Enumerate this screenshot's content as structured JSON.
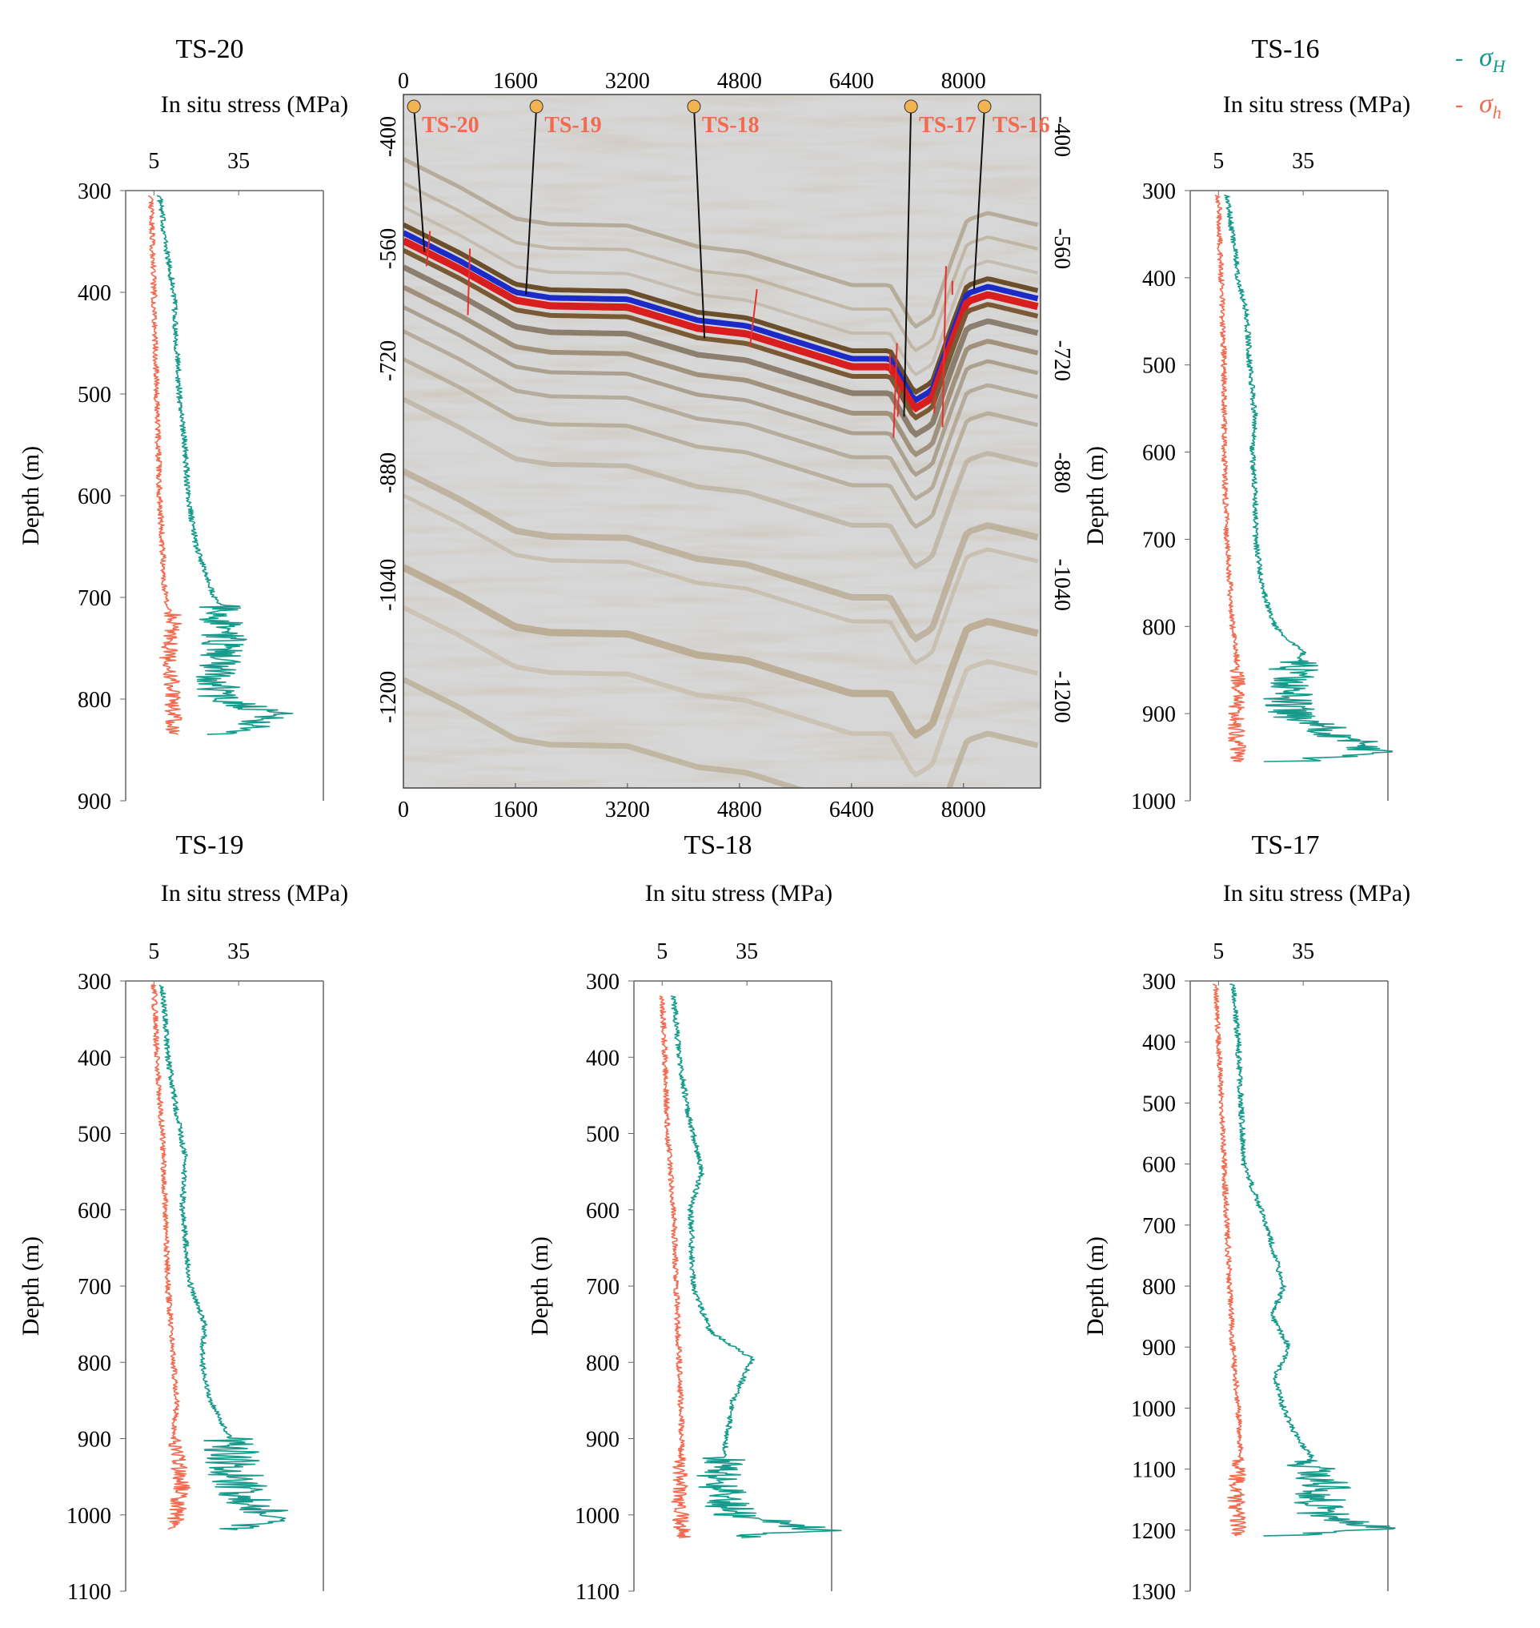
{
  "figure": {
    "legend": {
      "sigma_H": "σH",
      "sigma_h": "σh",
      "dash": "-"
    },
    "colors": {
      "sigma_H": "#159a8c",
      "sigma_h": "#f26a50",
      "section_label": "#f26a50",
      "fault": "#e8302c",
      "well_marker": "#f2b451"
    }
  },
  "chart_data": [
    {
      "type": "line",
      "id": "ts20",
      "title": "TS-20",
      "xlabel": "In situ stress (MPa)",
      "ylabel": "Depth (m)",
      "xticks": [
        5,
        35
      ],
      "xlim": [
        -5,
        65
      ],
      "ylim": [
        300,
        900
      ],
      "yticks": [
        300,
        400,
        500,
        600,
        700,
        800,
        900
      ],
      "series": [
        {
          "name": "σH",
          "depth": [
            305,
            350,
            400,
            450,
            500,
            550,
            600,
            650,
            690,
            710,
            740,
            780,
            800,
            815,
            835
          ],
          "values": [
            7,
            9,
            12,
            13,
            14,
            16,
            17,
            20,
            25,
            28,
            30,
            27,
            29,
            50,
            30
          ],
          "noisy_from": 705,
          "noise": 8
        },
        {
          "name": "σh",
          "depth": [
            305,
            400,
            500,
            600,
            700,
            720,
            760,
            800,
            835
          ],
          "values": [
            4,
            5,
            6,
            7,
            9,
            12,
            10,
            12,
            12
          ],
          "noisy_from": 715,
          "noise": 3
        }
      ]
    },
    {
      "type": "line",
      "id": "ts16",
      "title": "TS-16",
      "xlabel": "In situ stress (MPa)",
      "ylabel": "Depth (m)",
      "xticks": [
        5,
        35
      ],
      "xlim": [
        -5,
        65
      ],
      "ylim": [
        300,
        1000
      ],
      "yticks": [
        300,
        400,
        500,
        600,
        700,
        800,
        900,
        1000
      ],
      "series": [
        {
          "name": "σH",
          "depth": [
            305,
            350,
            400,
            440,
            500,
            560,
            600,
            650,
            700,
            760,
            800,
            830,
            860,
            900,
            945,
            955
          ],
          "values": [
            8,
            10,
            12,
            15,
            16,
            18,
            17,
            18,
            18,
            21,
            25,
            35,
            30,
            30,
            62,
            30
          ],
          "noisy_from": 840,
          "noise": 9
        },
        {
          "name": "σh",
          "depth": [
            305,
            400,
            500,
            600,
            700,
            800,
            850,
            900,
            955
          ],
          "values": [
            5,
            6,
            7,
            7,
            8,
            10,
            12,
            11,
            12
          ],
          "noisy_from": 850,
          "noise": 3
        }
      ]
    },
    {
      "type": "line",
      "id": "ts19",
      "title": "TS-19",
      "xlabel": "In situ stress (MPa)",
      "ylabel": "Depth (m)",
      "xticks": [
        5,
        35
      ],
      "xlim": [
        -5,
        65
      ],
      "ylim": [
        300,
        1100
      ],
      "yticks": [
        300,
        400,
        500,
        600,
        700,
        800,
        900,
        1000,
        1100
      ],
      "series": [
        {
          "name": "σH",
          "depth": [
            305,
            400,
            470,
            530,
            600,
            700,
            750,
            800,
            850,
            900,
            940,
            980,
            1005,
            1020
          ],
          "values": [
            8,
            10,
            13,
            16,
            15,
            18,
            23,
            22,
            25,
            32,
            33,
            38,
            50,
            28
          ],
          "noisy_from": 900,
          "noise": 10
        },
        {
          "name": "σh",
          "depth": [
            305,
            400,
            500,
            600,
            700,
            800,
            850,
            900,
            960,
            1020
          ],
          "values": [
            5,
            6,
            8,
            9,
            10,
            12,
            13,
            12,
            15,
            12
          ],
          "noisy_from": 900,
          "noise": 3
        }
      ]
    },
    {
      "type": "line",
      "id": "ts18",
      "title": "TS-18",
      "xlabel": "In situ stress (MPa)",
      "ylabel": "Depth (m)",
      "xticks": [
        5,
        35
      ],
      "xlim": [
        -5,
        65
      ],
      "ylim": [
        300,
        1100
      ],
      "yticks": [
        300,
        400,
        500,
        600,
        700,
        800,
        900,
        1000,
        1100
      ],
      "series": [
        {
          "name": "σH",
          "depth": [
            320,
            400,
            470,
            550,
            600,
            700,
            760,
            795,
            850,
            920,
            960,
            1000,
            1020,
            1030
          ],
          "values": [
            9,
            11,
            14,
            19,
            15,
            16,
            22,
            37,
            30,
            27,
            25,
            30,
            62,
            30
          ],
          "noisy_from": 925,
          "noise": 9
        },
        {
          "name": "σh",
          "depth": [
            320,
            400,
            500,
            600,
            700,
            800,
            900,
            960,
            1030
          ],
          "values": [
            5,
            6,
            7,
            9,
            10,
            11,
            12,
            11,
            12
          ],
          "noisy_from": 925,
          "noise": 3
        }
      ]
    },
    {
      "type": "line",
      "id": "ts17",
      "title": "TS-17",
      "xlabel": "In situ stress (MPa)",
      "ylabel": "Depth (m)",
      "xticks": [
        5,
        35
      ],
      "xlim": [
        -5,
        65
      ],
      "ylim": [
        300,
        1300
      ],
      "yticks": [
        300,
        400,
        500,
        600,
        700,
        800,
        900,
        1000,
        1100,
        1200,
        1300
      ],
      "series": [
        {
          "name": "σH",
          "depth": [
            305,
            400,
            500,
            600,
            650,
            700,
            800,
            850,
            900,
            950,
            1000,
            1050,
            1080,
            1130,
            1170,
            1200,
            1210
          ],
          "values": [
            10,
            12,
            13,
            14,
            18,
            22,
            28,
            24,
            30,
            25,
            28,
            33,
            38,
            42,
            40,
            60,
            25
          ],
          "noisy_from": 1085,
          "noise": 10
        },
        {
          "name": "σh",
          "depth": [
            305,
            400,
            500,
            600,
            700,
            800,
            900,
            1000,
            1080,
            1130,
            1210
          ],
          "values": [
            4,
            5,
            6,
            7,
            8,
            9,
            10,
            12,
            13,
            11,
            12
          ],
          "noisy_from": 1085,
          "noise": 3
        }
      ]
    },
    {
      "type": "heatmap",
      "id": "seismic",
      "title": "",
      "x_ticks": [
        0,
        1600,
        3200,
        4800,
        6400,
        8000
      ],
      "xlim": [
        0,
        9100
      ],
      "y_ticks": [
        -400,
        -560,
        -720,
        -880,
        -1040,
        -1200
      ],
      "ylim": [
        -340,
        -1330
      ],
      "wells": [
        {
          "name": "TS-20",
          "top_x": 150,
          "bottom_x": 300,
          "bottom_y": -565
        },
        {
          "name": "TS-19",
          "top_x": 1900,
          "bottom_x": 1750,
          "bottom_y": -626
        },
        {
          "name": "TS-18",
          "top_x": 4150,
          "bottom_x": 4300,
          "bottom_y": -688
        },
        {
          "name": "TS-17",
          "top_x": 7250,
          "bottom_x": 7150,
          "bottom_y": -800
        },
        {
          "name": "TS-16",
          "top_x": 8300,
          "bottom_x": 8150,
          "bottom_y": -618
        }
      ],
      "horizon": {
        "x": [
          0,
          800,
          1600,
          2100,
          3200,
          4200,
          4900,
          5600,
          6400,
          6950,
          7300,
          7550,
          7850,
          8050,
          8350,
          9100
        ],
        "y": [
          -535,
          -575,
          -620,
          -628,
          -630,
          -660,
          -668,
          -690,
          -715,
          -715,
          -775,
          -760,
          -675,
          -622,
          -612,
          -630
        ]
      },
      "faults": [
        {
          "x1": 380,
          "y1": -535,
          "x2": 330,
          "y2": -585
        },
        {
          "x1": 950,
          "y1": -560,
          "x2": 920,
          "y2": -655
        },
        {
          "x1": 5050,
          "y1": -618,
          "x2": 4950,
          "y2": -700
        },
        {
          "x1": 6950,
          "y1": -710,
          "x2": 6950,
          "y2": -735
        },
        {
          "x1": 7050,
          "y1": -695,
          "x2": 7000,
          "y2": -830
        },
        {
          "x1": 7080,
          "y1": -758,
          "x2": 7060,
          "y2": -800
        },
        {
          "x1": 7750,
          "y1": -585,
          "x2": 7700,
          "y2": -815
        },
        {
          "x1": 7600,
          "y1": -770,
          "x2": 7580,
          "y2": -795
        },
        {
          "x1": 7840,
          "y1": -606,
          "x2": 7840,
          "y2": -626
        }
      ]
    }
  ]
}
